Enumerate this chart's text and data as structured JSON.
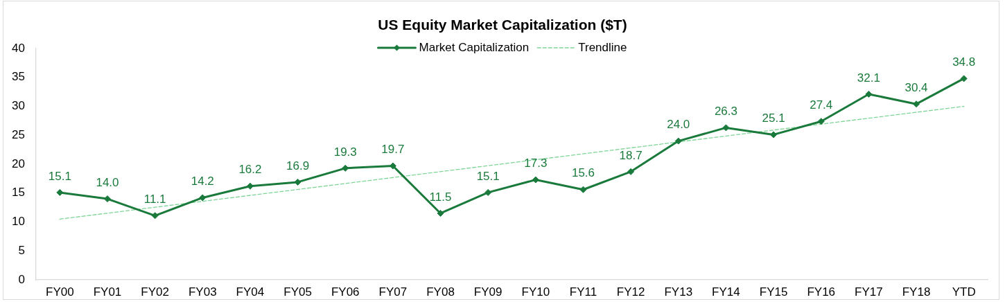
{
  "chart_data": {
    "type": "line",
    "title": "US Equity Market Capitalization ($T)",
    "categories": [
      "FY00",
      "FY01",
      "FY02",
      "FY03",
      "FY04",
      "FY05",
      "FY06",
      "FY07",
      "FY08",
      "FY09",
      "FY10",
      "FY11",
      "FY12",
      "FY13",
      "FY14",
      "FY15",
      "FY16",
      "FY17",
      "FY18",
      "YTD"
    ],
    "series": [
      {
        "name": "Market Capitalization",
        "color": "#1a7a3c",
        "marker": "diamond",
        "values": [
          15.1,
          14.0,
          11.1,
          14.2,
          16.2,
          16.9,
          19.3,
          19.7,
          11.5,
          15.1,
          17.3,
          15.6,
          18.7,
          24.0,
          26.3,
          25.1,
          27.4,
          32.1,
          30.4,
          34.8
        ],
        "value_labels": [
          "15.1",
          "14.0",
          "11.1",
          "14.2",
          "16.2",
          "16.9",
          "19.3",
          "19.7",
          "11.5",
          "15.1",
          "17.3",
          "15.6",
          "18.7",
          "24.0",
          "26.3",
          "25.1",
          "27.4",
          "32.1",
          "30.4",
          "34.8"
        ]
      },
      {
        "name": "Trendline",
        "type": "line",
        "color": "#7fd597",
        "line_style": "dashed",
        "x": [
          "FY00",
          "YTD"
        ],
        "values": [
          10.5,
          30.0
        ]
      }
    ],
    "ylim": [
      0,
      40
    ],
    "yticks": [
      0,
      5,
      10,
      15,
      20,
      25,
      30,
      35,
      40
    ],
    "legend": "top"
  }
}
